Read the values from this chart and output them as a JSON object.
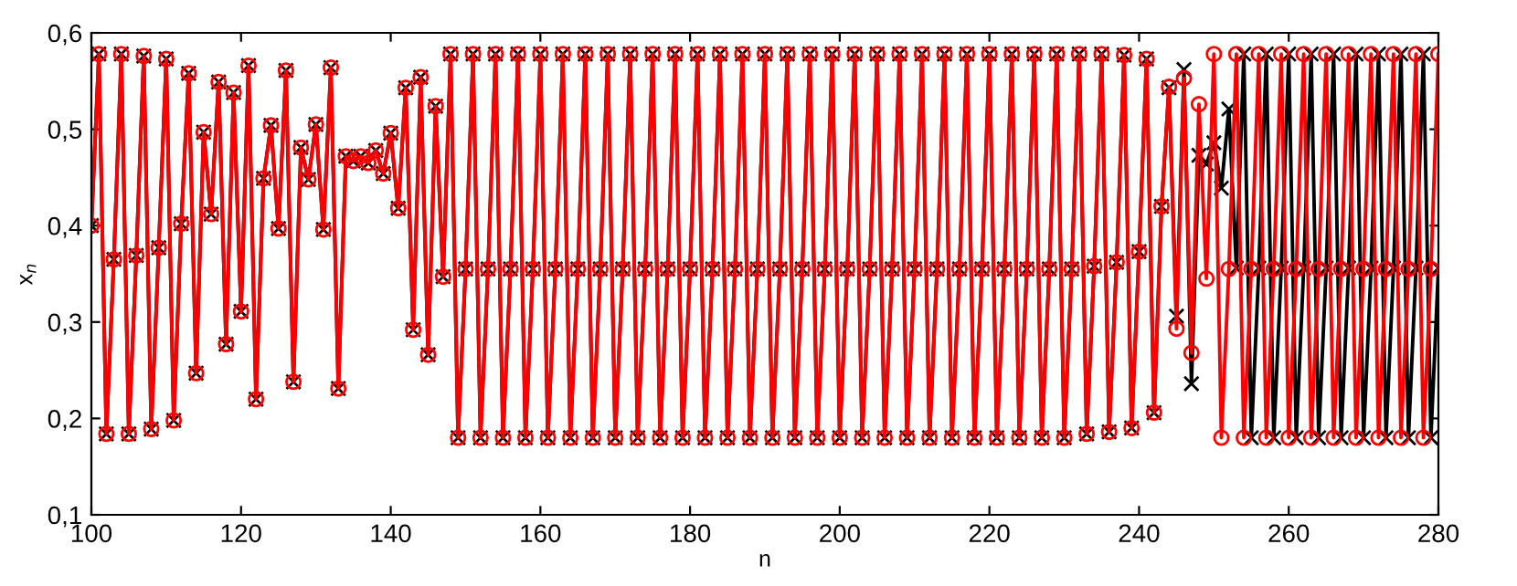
{
  "chart_data": {
    "type": "line",
    "xlabel": "n",
    "ylabel": "x$_{n}$",
    "x": [
      100,
      101,
      102,
      103,
      104,
      105,
      106,
      107,
      108,
      109,
      110,
      111,
      112,
      113,
      114,
      115,
      116,
      117,
      118,
      119,
      120,
      121,
      122,
      123,
      124,
      125,
      126,
      127,
      128,
      129,
      130,
      131,
      132,
      133,
      134,
      135,
      136,
      137,
      138,
      139,
      140,
      141,
      142,
      143,
      144,
      145,
      146,
      147,
      148,
      149,
      150,
      151,
      152,
      153,
      154,
      155,
      156,
      157,
      158,
      159,
      160,
      161,
      162,
      163,
      164,
      165,
      166,
      167,
      168,
      169,
      170,
      171,
      172,
      173,
      174,
      175,
      176,
      177,
      178,
      179,
      180,
      181,
      182,
      183,
      184,
      185,
      186,
      187,
      188,
      189,
      190,
      191,
      192,
      193,
      194,
      195,
      196,
      197,
      198,
      199,
      200,
      201,
      202,
      203,
      204,
      205,
      206,
      207,
      208,
      209,
      210,
      211,
      212,
      213,
      214,
      215,
      216,
      217,
      218,
      219,
      220,
      221,
      222,
      223,
      224,
      225,
      226,
      227,
      228,
      229,
      230,
      231,
      232,
      233,
      234,
      235,
      236,
      237,
      238,
      239,
      240,
      241,
      242,
      243,
      244,
      245,
      246,
      247,
      248,
      249,
      250,
      251,
      252,
      253,
      254,
      255,
      256,
      257,
      258,
      259,
      260,
      261,
      262,
      263,
      264,
      265,
      266,
      267,
      268,
      269,
      270,
      271,
      272,
      273,
      274,
      275,
      276,
      277,
      278,
      279,
      280
    ],
    "series": [
      {
        "color": "#000000",
        "marker": "cross",
        "values": [
          0.4,
          0.578,
          0.184,
          0.365,
          0.578,
          0.184,
          0.369,
          0.576,
          0.189,
          0.377,
          0.573,
          0.198,
          0.402,
          0.558,
          0.247,
          0.497,
          0.412,
          0.549,
          0.277,
          0.538,
          0.311,
          0.566,
          0.22,
          0.449,
          0.504,
          0.397,
          0.561,
          0.238,
          0.481,
          0.448,
          0.505,
          0.396,
          0.564,
          0.231,
          0.472,
          0.467,
          0.472,
          0.465,
          0.478,
          0.454,
          0.496,
          0.418,
          0.543,
          0.292,
          0.554,
          0.266,
          0.524,
          0.347,
          0.578,
          0.18,
          0.355,
          0.578,
          0.18,
          0.355,
          0.578,
          0.18,
          0.355,
          0.578,
          0.18,
          0.355,
          0.578,
          0.18,
          0.355,
          0.578,
          0.18,
          0.355,
          0.578,
          0.18,
          0.355,
          0.578,
          0.18,
          0.355,
          0.578,
          0.18,
          0.355,
          0.578,
          0.18,
          0.355,
          0.578,
          0.18,
          0.355,
          0.578,
          0.18,
          0.355,
          0.578,
          0.18,
          0.355,
          0.578,
          0.18,
          0.355,
          0.578,
          0.18,
          0.355,
          0.578,
          0.18,
          0.355,
          0.578,
          0.18,
          0.355,
          0.578,
          0.18,
          0.355,
          0.578,
          0.18,
          0.355,
          0.578,
          0.18,
          0.355,
          0.578,
          0.18,
          0.355,
          0.578,
          0.18,
          0.355,
          0.578,
          0.18,
          0.355,
          0.578,
          0.18,
          0.355,
          0.578,
          0.18,
          0.355,
          0.578,
          0.18,
          0.355,
          0.578,
          0.18,
          0.355,
          0.578,
          0.18,
          0.355,
          0.578,
          0.184,
          0.358,
          0.578,
          0.186,
          0.362,
          0.577,
          0.19,
          0.373,
          0.573,
          0.206,
          0.42,
          0.543,
          0.306,
          0.562,
          0.236,
          0.473,
          0.464,
          0.486,
          0.439,
          0.521,
          0.356,
          0.578,
          0.18,
          0.356,
          0.578,
          0.18,
          0.356,
          0.578,
          0.18,
          0.356,
          0.578,
          0.18,
          0.356,
          0.578,
          0.18,
          0.356,
          0.578,
          0.18,
          0.356,
          0.578,
          0.18,
          0.356,
          0.578,
          0.18,
          0.356,
          0.578,
          0.18,
          0.356
        ]
      },
      {
        "color": "#ff0000",
        "marker": "circle",
        "values": [
          0.4,
          0.578,
          0.184,
          0.365,
          0.578,
          0.184,
          0.369,
          0.576,
          0.189,
          0.377,
          0.573,
          0.198,
          0.402,
          0.558,
          0.247,
          0.497,
          0.412,
          0.549,
          0.277,
          0.538,
          0.311,
          0.566,
          0.22,
          0.449,
          0.504,
          0.397,
          0.561,
          0.238,
          0.481,
          0.448,
          0.505,
          0.396,
          0.564,
          0.231,
          0.472,
          0.467,
          0.472,
          0.465,
          0.478,
          0.454,
          0.496,
          0.418,
          0.543,
          0.292,
          0.554,
          0.266,
          0.524,
          0.347,
          0.578,
          0.18,
          0.355,
          0.578,
          0.18,
          0.355,
          0.578,
          0.18,
          0.355,
          0.578,
          0.18,
          0.355,
          0.578,
          0.18,
          0.355,
          0.578,
          0.18,
          0.355,
          0.578,
          0.18,
          0.355,
          0.578,
          0.18,
          0.355,
          0.578,
          0.18,
          0.355,
          0.578,
          0.18,
          0.355,
          0.578,
          0.18,
          0.355,
          0.578,
          0.18,
          0.355,
          0.578,
          0.18,
          0.355,
          0.578,
          0.18,
          0.355,
          0.578,
          0.18,
          0.355,
          0.578,
          0.18,
          0.355,
          0.578,
          0.18,
          0.355,
          0.578,
          0.18,
          0.355,
          0.578,
          0.18,
          0.355,
          0.578,
          0.18,
          0.355,
          0.578,
          0.18,
          0.355,
          0.578,
          0.18,
          0.355,
          0.578,
          0.18,
          0.355,
          0.578,
          0.18,
          0.355,
          0.578,
          0.18,
          0.355,
          0.578,
          0.18,
          0.355,
          0.578,
          0.18,
          0.355,
          0.578,
          0.18,
          0.355,
          0.578,
          0.184,
          0.358,
          0.578,
          0.186,
          0.362,
          0.577,
          0.19,
          0.373,
          0.573,
          0.206,
          0.42,
          0.544,
          0.293,
          0.553,
          0.268,
          0.526,
          0.345,
          0.578,
          0.18,
          0.355,
          0.578,
          0.18,
          0.355,
          0.578,
          0.18,
          0.355,
          0.578,
          0.18,
          0.355,
          0.578,
          0.18,
          0.355,
          0.578,
          0.18,
          0.355,
          0.578,
          0.18,
          0.355,
          0.578,
          0.18,
          0.355,
          0.578,
          0.18,
          0.355,
          0.578,
          0.18,
          0.355,
          0.578
        ]
      }
    ],
    "xlim": [
      100,
      280
    ],
    "xticks": [
      100,
      120,
      140,
      160,
      180,
      200,
      220,
      240,
      260,
      280
    ],
    "ylim": [
      0.1,
      0.6
    ],
    "yticks": [
      {
        "value": 0.1,
        "label": "0,1"
      },
      {
        "value": 0.2,
        "label": "0,2"
      },
      {
        "value": 0.3,
        "label": "0,3"
      },
      {
        "value": 0.4,
        "label": "0,4"
      },
      {
        "value": 0.5,
        "label": "0,5"
      },
      {
        "value": 0.6,
        "label": "0,6"
      }
    ],
    "grid": false,
    "legend": false,
    "line_style": "solid"
  }
}
